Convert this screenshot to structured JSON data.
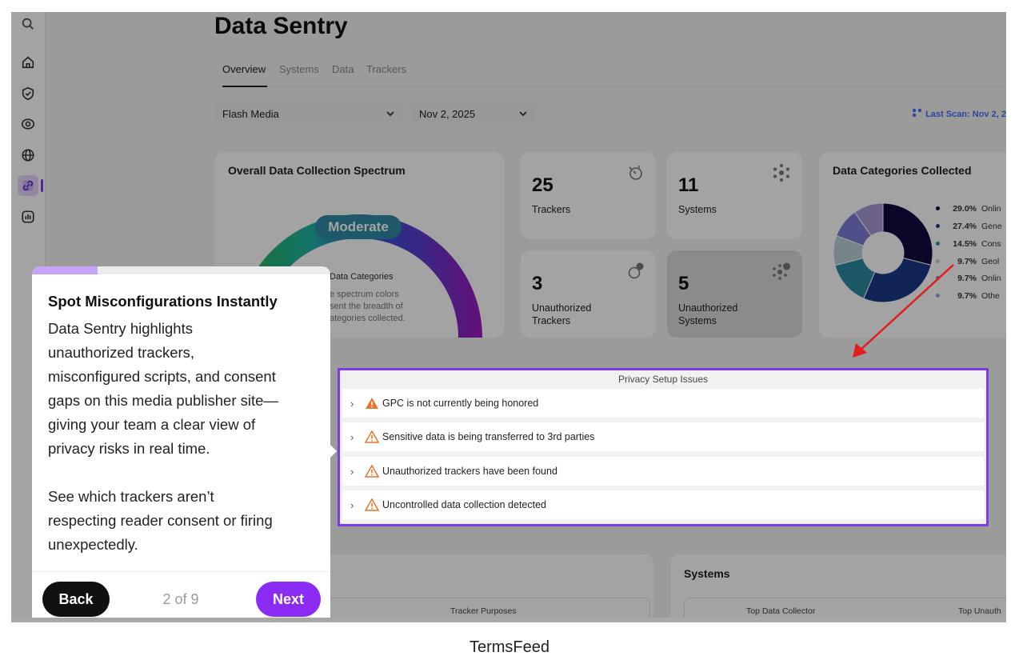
{
  "app": {
    "title": "Data Sentry"
  },
  "tabs": [
    {
      "label": "Overview",
      "active": true
    },
    {
      "label": "Systems"
    },
    {
      "label": "Data"
    },
    {
      "label": "Trackers"
    }
  ],
  "filters": {
    "site": "Flash Media",
    "date": "Nov 2, 2025"
  },
  "last_scan": "Last Scan: Nov 2, 20",
  "spectrum": {
    "title": "Overall Data Collection Spectrum",
    "level": "Moderate",
    "caption_title": "Data Categories",
    "caption_lines": [
      "e spectrum colors",
      "sent the breadth of",
      "ategories collected."
    ]
  },
  "stats": [
    {
      "value": "25",
      "label": "Trackers"
    },
    {
      "value": "11",
      "label": "Systems"
    },
    {
      "value": "3",
      "label_line1": "Unauthorized",
      "label_line2": "Trackers"
    },
    {
      "value": "5",
      "label_line1": "Unauthorized",
      "label_line2": "Systems"
    }
  ],
  "categories": {
    "title": "Data Categories Collected",
    "items": [
      {
        "pct": "29.0%",
        "name": "Onlin",
        "color": "#12083f"
      },
      {
        "pct": "27.4%",
        "name": "Gene",
        "color": "#1a3a86"
      },
      {
        "pct": "14.5%",
        "name": "Cons",
        "color": "#2c8a9e"
      },
      {
        "pct": "9.7%",
        "name": "Geol",
        "color": "#b8d0d8"
      },
      {
        "pct": "9.7%",
        "name": "Onlin",
        "color": "#7c7ed6"
      },
      {
        "pct": "9.7%",
        "name": "Othe",
        "color": "#a99ad6"
      }
    ]
  },
  "privacy": {
    "header": "Privacy Setup Issues",
    "issues": [
      {
        "text": "GPC is not currently being honored",
        "severity": "high"
      },
      {
        "text": "Sensitive data is being transferred to 3rd parties",
        "severity": "medium"
      },
      {
        "text": "Unauthorized trackers have been found",
        "severity": "medium"
      },
      {
        "text": "Uncontrolled data collection detected",
        "severity": "medium"
      }
    ]
  },
  "bottom": {
    "systems_title": "Systems",
    "tracker_purposes": "Tracker Purposes",
    "top_collector": "Top Data Collector",
    "top_unauth": "Top Unauth"
  },
  "tooltip": {
    "progress": 0.22,
    "title": "Spot Misconfigurations Instantly",
    "body_lines": [
      "Data Sentry highlights",
      "unauthorized trackers,",
      "misconfigured scripts, and consent",
      "gaps on this media publisher site—",
      "giving your team a clear view of",
      "privacy risks in real time."
    ],
    "body2_lines": [
      "See which trackers aren’t",
      "respecting reader consent or firing",
      "unexpectedly."
    ],
    "back_label": "Back",
    "step_label": "2 of 9",
    "next_label": "Next"
  },
  "footer": "TermsFeed",
  "icons": [
    "search-icon",
    "home-icon",
    "shield-check-icon",
    "eye-icon",
    "globe-icon",
    "link-icon",
    "bar-chart-icon",
    "stopwatch-icon",
    "asterisk-icon",
    "warning-icon",
    "chevron-down-icon",
    "chevron-right-icon",
    "network-icon"
  ],
  "colors": {
    "accent": "#8b2cf5",
    "highlight_border": "#7c3aed",
    "arrow": "#e11d1d",
    "warning": "#e8742a"
  }
}
